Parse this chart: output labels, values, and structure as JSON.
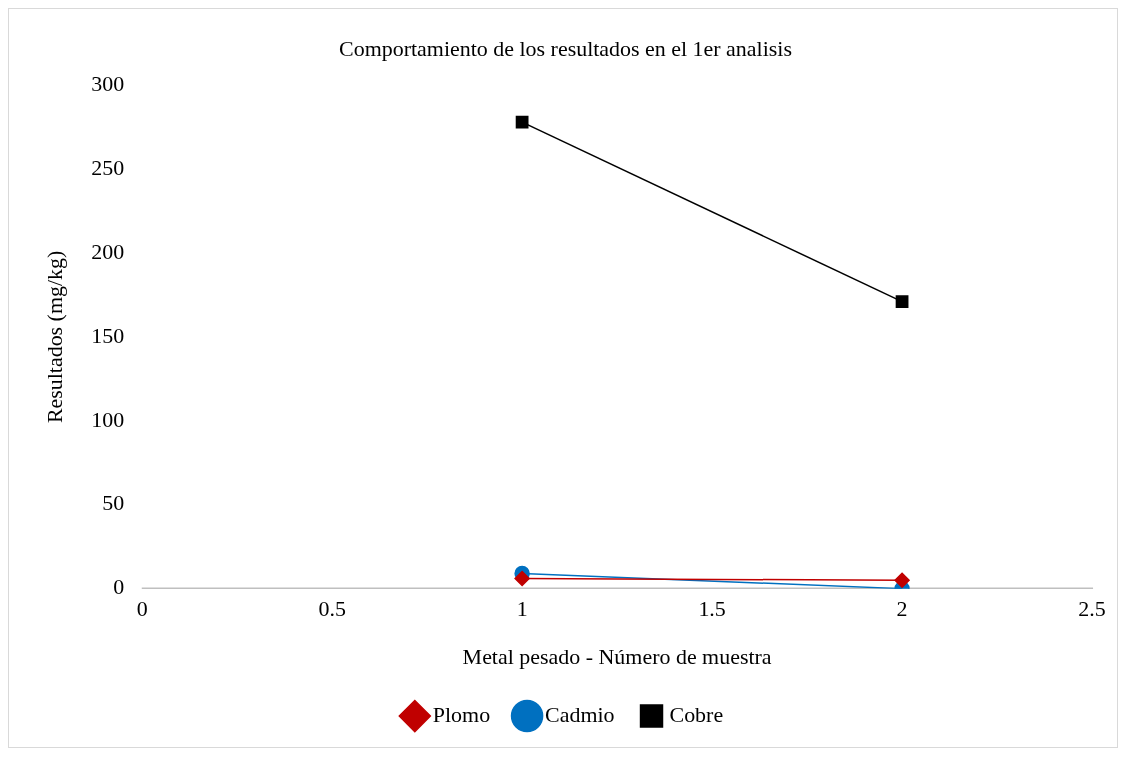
{
  "chart_data": {
    "type": "line",
    "title": "Comportamiento de los resultados en el 1er analisis",
    "xlabel": "Metal pesado - Número de muestra",
    "ylabel": "Resultados (mg/kg)",
    "x": [
      1,
      2
    ],
    "series": [
      {
        "name": "Plomo",
        "color": "#c00000",
        "values": [
          6,
          5
        ],
        "marker": "diamond"
      },
      {
        "name": "Cadmio",
        "color": "#0070c0",
        "values": [
          9,
          0
        ],
        "marker": "circle"
      },
      {
        "name": "Cobre",
        "color": "#000000",
        "values": [
          278,
          171
        ],
        "marker": "square"
      }
    ],
    "xlim": [
      0,
      2.5
    ],
    "xticks": [
      0,
      0.5,
      1,
      1.5,
      2,
      2.5
    ],
    "ylim": [
      0,
      300
    ],
    "yticks": [
      0,
      50,
      100,
      150,
      200,
      250,
      300
    ],
    "grid": false,
    "legend": "bottom",
    "line_style": "solid"
  }
}
